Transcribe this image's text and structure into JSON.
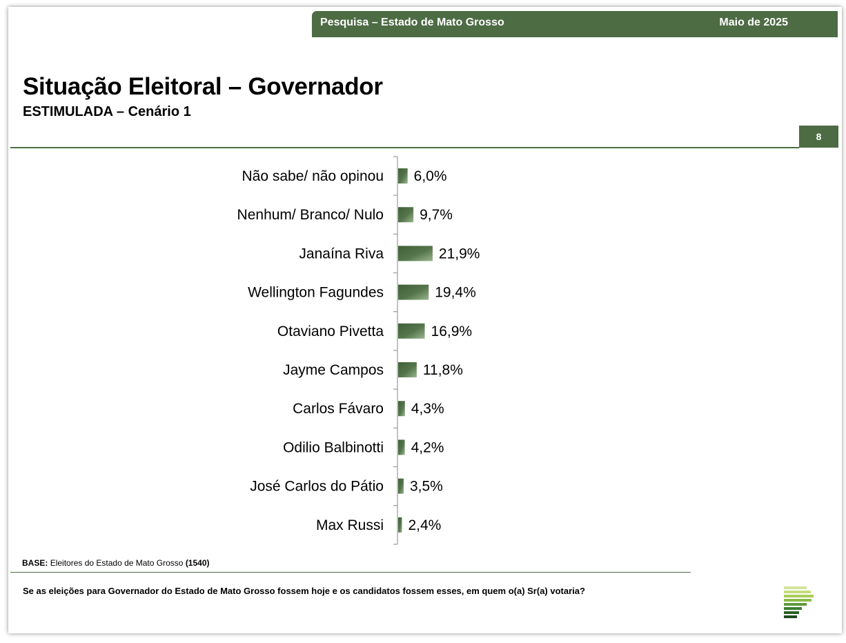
{
  "header": {
    "survey_label": "Pesquisa – Estado de Mato Grosso",
    "date_label": "Maio de 2025"
  },
  "page": {
    "title": "Situação Eleitoral – Governador",
    "subtitle": "ESTIMULADA – Cenário 1",
    "number": "8"
  },
  "footer": {
    "base_label": "BASE:",
    "base_text": "Eleitores do Estado de Mato Grosso",
    "base_count": "(1540)",
    "question": "Se as eleições para Governador do Estado de Mato Grosso fossem hoje e os candidatos fossem esses, em quem o(a)  Sr(a) votaria?"
  },
  "colors": {
    "brand_green": "#4d6c44",
    "bar_dark": "#3f5f37",
    "bar_light": "#8faa84"
  },
  "chart_data": {
    "type": "bar",
    "orientation": "horizontal",
    "categories": [
      "Não sabe/ não opinou",
      "Nenhum/ Branco/ Nulo",
      "Janaína Riva",
      "Wellington Fagundes",
      "Otaviano Pivetta",
      "Jayme Campos",
      "Carlos Fávaro",
      "Odilio Balbinotti",
      "José Carlos do Pátio",
      "Max Russi"
    ],
    "values": [
      6.0,
      9.7,
      21.9,
      19.4,
      16.9,
      11.8,
      4.3,
      4.2,
      3.5,
      2.4
    ],
    "value_labels": [
      "6,0%",
      "9,7%",
      "21,9%",
      "19,4%",
      "16,9%",
      "11,8%",
      "4,3%",
      "4,2%",
      "3,5%",
      "2,4%"
    ],
    "unit": "%",
    "xlim": [
      0,
      100
    ],
    "grid": false,
    "legend": "none"
  }
}
